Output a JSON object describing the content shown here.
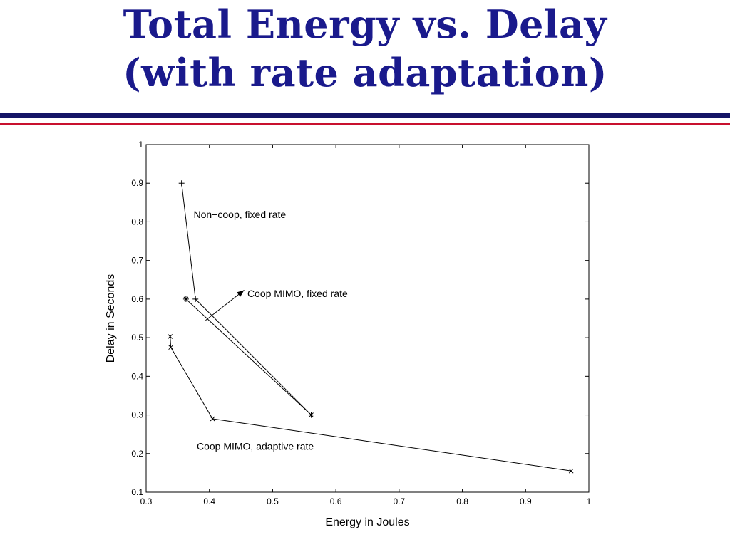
{
  "slide": {
    "title_line1": "Total Energy vs. Delay",
    "title_line2": "(with rate adaptation)"
  },
  "chart_data": {
    "type": "line",
    "xlabel": "Energy in Joules",
    "ylabel": "Delay in Seconds",
    "xlim": [
      0.3,
      1
    ],
    "ylim": [
      0.1,
      1
    ],
    "xticks": [
      0.3,
      0.4,
      0.5,
      0.6,
      0.7,
      0.8,
      0.9,
      1
    ],
    "yticks": [
      0.1,
      0.2,
      0.3,
      0.4,
      0.5,
      0.6,
      0.7,
      0.8,
      0.9,
      1
    ],
    "grid": false,
    "series": [
      {
        "marker": "plus",
        "points": [
          [
            0.356,
            0.9
          ],
          [
            0.378,
            0.6
          ],
          [
            0.561,
            0.3
          ]
        ]
      },
      {
        "marker": "star",
        "points": [
          [
            0.363,
            0.6
          ],
          [
            0.561,
            0.3
          ]
        ]
      },
      {
        "marker": "x",
        "points": [
          [
            0.338,
            0.503
          ],
          [
            0.339,
            0.475
          ],
          [
            0.405,
            0.29
          ],
          [
            0.972,
            0.155
          ]
        ]
      }
    ],
    "annotations": [
      {
        "text": "Non−coop, fixed rate",
        "x": 0.375,
        "y": 0.81
      },
      {
        "text": "Coop MIMO, fixed rate",
        "x": 0.46,
        "y": 0.605
      },
      {
        "text": "Coop MIMO, adaptive rate",
        "x": 0.38,
        "y": 0.21
      }
    ],
    "arrow": {
      "from": [
        0.394,
        0.545
      ],
      "to": [
        0.455,
        0.623
      ]
    }
  }
}
